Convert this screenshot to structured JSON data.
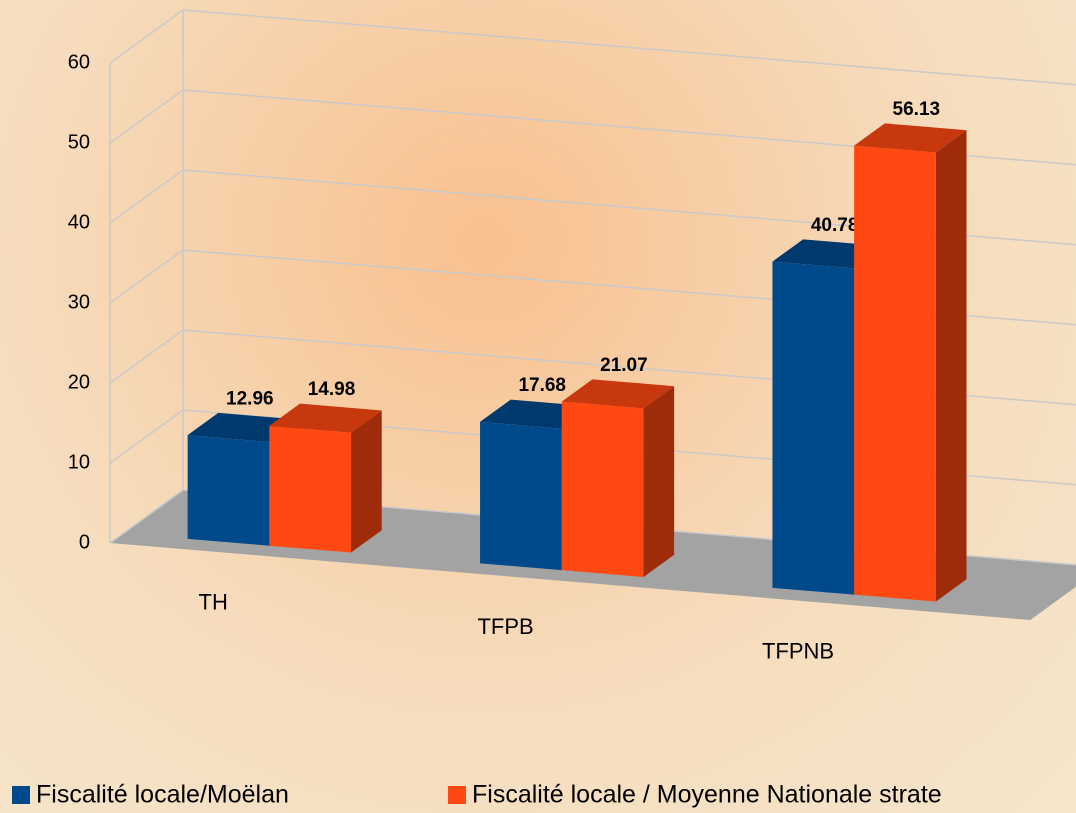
{
  "chart_data": {
    "type": "bar3d",
    "categories": [
      "TH",
      "TFPB",
      "TFPNB"
    ],
    "series": [
      {
        "name": "Fiscalité locale/Moëlan",
        "color": "#004a8c",
        "values": [
          12.96,
          17.68,
          40.78
        ]
      },
      {
        "name": "Fiscalité locale / Moyenne Nationale strate",
        "color": "#ff4812",
        "values": [
          14.98,
          21.07,
          56.13
        ]
      }
    ],
    "ylim": [
      0,
      60
    ],
    "yticks": [
      0,
      10,
      20,
      30,
      40,
      50,
      60
    ],
    "grid": true,
    "legend": "bottom"
  }
}
